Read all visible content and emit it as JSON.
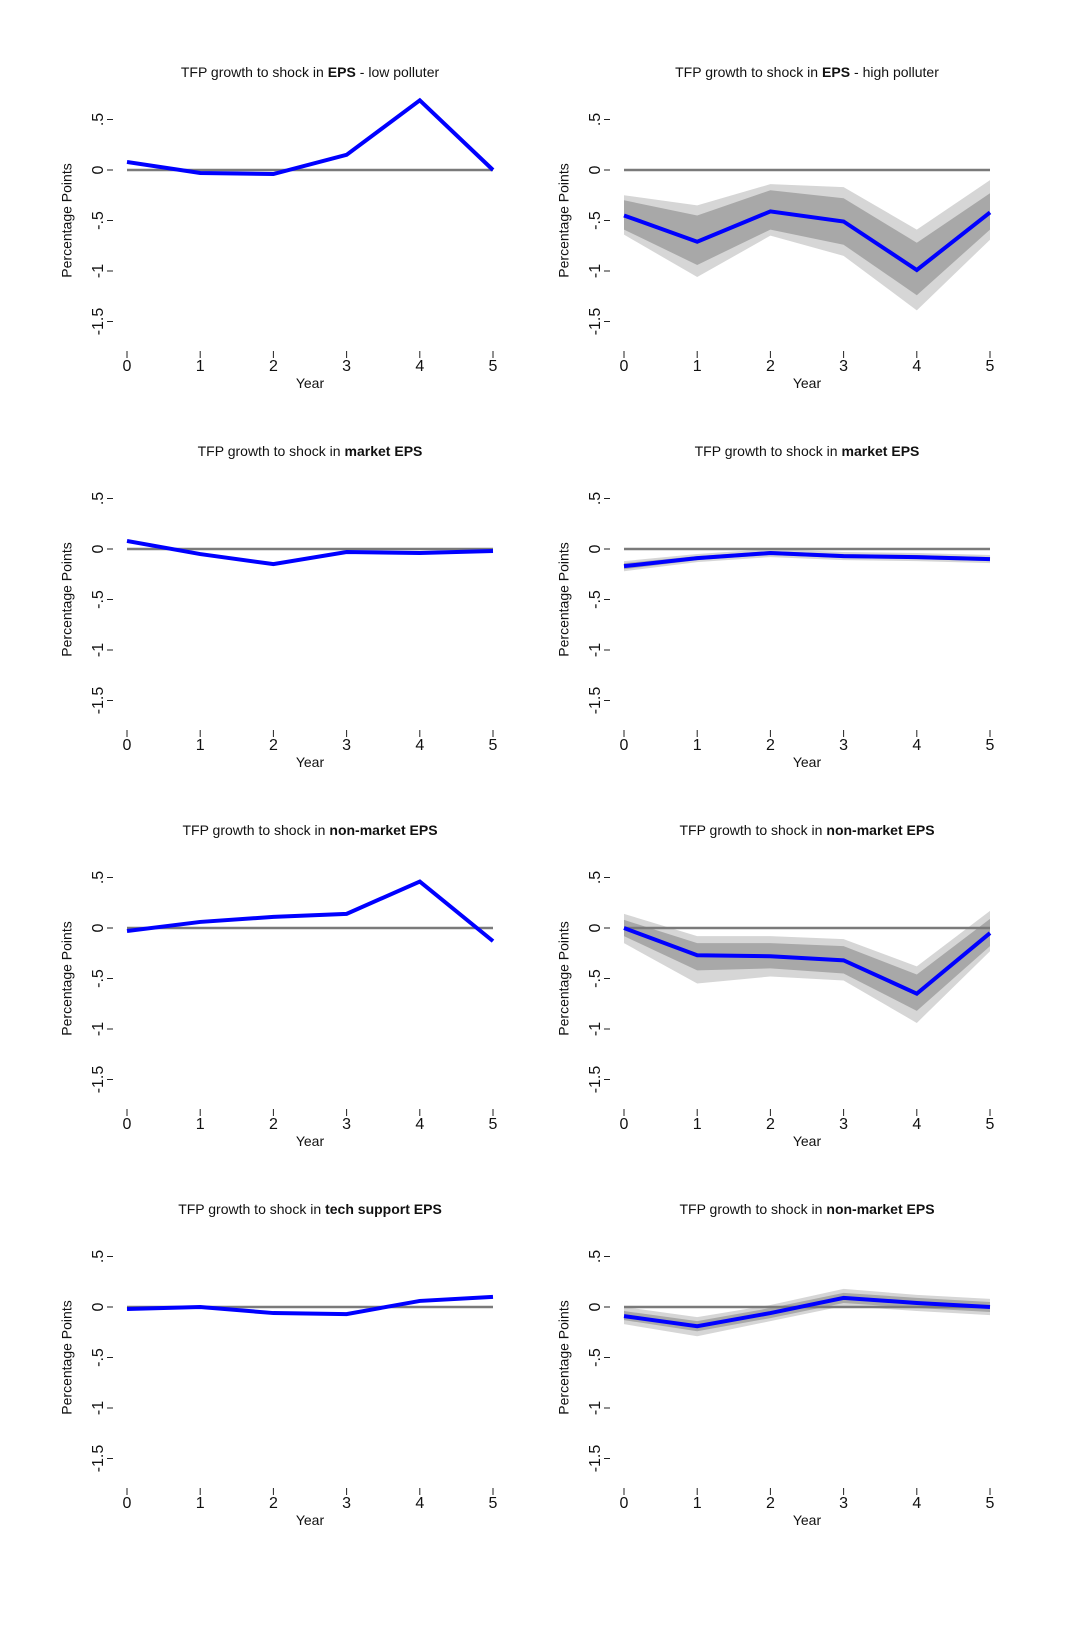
{
  "chart_data": [
    {
      "type": "line",
      "title": {
        "prefix": "TFP growth to shock in",
        "emphasis": "EPS",
        "suffix": "- low polluter"
      },
      "xlabel": "Year",
      "ylabel": "Percentage Points",
      "x": [
        0,
        1,
        2,
        3,
        4,
        5
      ],
      "xlim": [
        0,
        5
      ],
      "xticks": [
        0,
        1,
        2,
        3,
        4,
        5
      ],
      "ylim": [
        -1.6,
        0.6
      ],
      "yticks": [
        {
          "value": -1.5,
          "label": "-1.5"
        },
        -1,
        {
          "value": -0.5,
          "label": "-.5"
        },
        0,
        {
          "value": 0.5,
          "label": ".5"
        }
      ],
      "reference_line": 0,
      "series": [
        {
          "color": "#0000ff",
          "values": [
            0.08,
            -0.03,
            -0.04,
            0.15,
            0.69,
            0.0
          ]
        }
      ]
    },
    {
      "type": "line",
      "title": {
        "prefix": "TFP growth to shock in",
        "emphasis": "EPS",
        "suffix": "- high polluter"
      },
      "xlabel": "Year",
      "ylabel": "Percentage Points",
      "x": [
        0,
        1,
        2,
        3,
        4,
        5
      ],
      "xlim": [
        0,
        5
      ],
      "xticks": [
        0,
        1,
        2,
        3,
        4,
        5
      ],
      "ylim": [
        -1.6,
        0.6
      ],
      "yticks": [
        {
          "value": -1.5,
          "label": "-1.5"
        },
        -1,
        {
          "value": -0.5,
          "label": "-.5"
        },
        0,
        {
          "value": 0.5,
          "label": ".5"
        }
      ],
      "reference_line": 0,
      "bands": [
        {
          "color": "#d6d6d6",
          "upper": [
            -0.25,
            -0.35,
            -0.14,
            -0.17,
            -0.59,
            -0.1
          ],
          "lower": [
            -0.64,
            -1.06,
            -0.65,
            -0.85,
            -1.39,
            -0.69
          ]
        },
        {
          "color": "#a8a8a8",
          "upper": [
            -0.3,
            -0.45,
            -0.2,
            -0.28,
            -0.72,
            -0.23
          ],
          "lower": [
            -0.59,
            -0.94,
            -0.59,
            -0.74,
            -1.24,
            -0.59
          ]
        }
      ],
      "series": [
        {
          "color": "#0000ff",
          "values": [
            -0.45,
            -0.71,
            -0.41,
            -0.51,
            -0.99,
            -0.42
          ]
        }
      ]
    },
    {
      "type": "line",
      "title": {
        "prefix": "TFP growth to shock in",
        "emphasis": "market EPS"
      },
      "xlabel": "Year",
      "ylabel": "Percentage Points",
      "x": [
        0,
        1,
        2,
        3,
        4,
        5
      ],
      "xlim": [
        0,
        5
      ],
      "xticks": [
        0,
        1,
        2,
        3,
        4,
        5
      ],
      "ylim": [
        -1.6,
        0.6
      ],
      "yticks": [
        {
          "value": -1.5,
          "label": "-1.5"
        },
        -1,
        {
          "value": -0.5,
          "label": "-.5"
        },
        0,
        {
          "value": 0.5,
          "label": ".5"
        }
      ],
      "reference_line": 0,
      "series": [
        {
          "color": "#0000ff",
          "values": [
            0.08,
            -0.05,
            -0.15,
            -0.03,
            -0.04,
            -0.02
          ]
        }
      ]
    },
    {
      "type": "line",
      "title": {
        "prefix": "TFP growth to shock in",
        "emphasis": "market EPS"
      },
      "xlabel": "Year",
      "ylabel": "Percentage Points",
      "x": [
        0,
        1,
        2,
        3,
        4,
        5
      ],
      "xlim": [
        0,
        5
      ],
      "xticks": [
        0,
        1,
        2,
        3,
        4,
        5
      ],
      "ylim": [
        -1.6,
        0.6
      ],
      "yticks": [
        {
          "value": -1.5,
          "label": "-1.5"
        },
        -1,
        {
          "value": -0.5,
          "label": "-.5"
        },
        0,
        {
          "value": 0.5,
          "label": ".5"
        }
      ],
      "reference_line": 0,
      "bands": [
        {
          "color": "#d6d6d6",
          "upper": [
            -0.12,
            -0.05,
            0.0,
            -0.03,
            -0.04,
            -0.06
          ],
          "lower": [
            -0.22,
            -0.13,
            -0.08,
            -0.11,
            -0.12,
            -0.14
          ]
        },
        {
          "color": "#a8a8a8",
          "upper": [
            -0.14,
            -0.07,
            -0.02,
            -0.05,
            -0.06,
            -0.08
          ],
          "lower": [
            -0.2,
            -0.11,
            -0.06,
            -0.09,
            -0.1,
            -0.12
          ]
        }
      ],
      "series": [
        {
          "color": "#0000ff",
          "values": [
            -0.17,
            -0.09,
            -0.04,
            -0.07,
            -0.08,
            -0.1
          ]
        }
      ]
    },
    {
      "type": "line",
      "title": {
        "prefix": "TFP growth to shock in",
        "emphasis": "non-market EPS"
      },
      "xlabel": "Year",
      "ylabel": "Percentage Points",
      "x": [
        0,
        1,
        2,
        3,
        4,
        5
      ],
      "xlim": [
        0,
        5
      ],
      "xticks": [
        0,
        1,
        2,
        3,
        4,
        5
      ],
      "ylim": [
        -1.6,
        0.6
      ],
      "yticks": [
        {
          "value": -1.5,
          "label": "-1.5"
        },
        -1,
        {
          "value": -0.5,
          "label": "-.5"
        },
        0,
        {
          "value": 0.5,
          "label": ".5"
        }
      ],
      "reference_line": 0,
      "series": [
        {
          "color": "#0000ff",
          "values": [
            -0.03,
            0.06,
            0.11,
            0.14,
            0.46,
            -0.13
          ]
        }
      ]
    },
    {
      "type": "line",
      "title": {
        "prefix": "TFP growth to shock in",
        "emphasis": "non-market EPS"
      },
      "xlabel": "Year",
      "ylabel": "Percentage Points",
      "x": [
        0,
        1,
        2,
        3,
        4,
        5
      ],
      "xlim": [
        0,
        5
      ],
      "xticks": [
        0,
        1,
        2,
        3,
        4,
        5
      ],
      "ylim": [
        -1.6,
        0.6
      ],
      "yticks": [
        {
          "value": -1.5,
          "label": "-1.5"
        },
        -1,
        {
          "value": -0.5,
          "label": "-.5"
        },
        0,
        {
          "value": 0.5,
          "label": ".5"
        }
      ],
      "reference_line": 0,
      "bands": [
        {
          "color": "#d6d6d6",
          "upper": [
            0.14,
            -0.08,
            -0.08,
            -0.11,
            -0.38,
            0.17
          ],
          "lower": [
            -0.15,
            -0.55,
            -0.48,
            -0.52,
            -0.94,
            -0.23
          ]
        },
        {
          "color": "#a8a8a8",
          "upper": [
            0.08,
            -0.15,
            -0.15,
            -0.18,
            -0.46,
            0.09
          ],
          "lower": [
            -0.08,
            -0.42,
            -0.4,
            -0.45,
            -0.82,
            -0.18
          ]
        }
      ],
      "series": [
        {
          "color": "#0000ff",
          "values": [
            0.0,
            -0.27,
            -0.28,
            -0.32,
            -0.65,
            -0.05
          ]
        }
      ]
    },
    {
      "type": "line",
      "title": {
        "prefix": "TFP growth to shock in",
        "emphasis": "tech support EPS"
      },
      "xlabel": "Year",
      "ylabel": "Percentage Points",
      "x": [
        0,
        1,
        2,
        3,
        4,
        5
      ],
      "xlim": [
        0,
        5
      ],
      "xticks": [
        0,
        1,
        2,
        3,
        4,
        5
      ],
      "ylim": [
        -1.6,
        0.6
      ],
      "yticks": [
        {
          "value": -1.5,
          "label": "-1.5"
        },
        -1,
        {
          "value": -0.5,
          "label": "-.5"
        },
        0,
        {
          "value": 0.5,
          "label": ".5"
        }
      ],
      "reference_line": 0,
      "series": [
        {
          "color": "#0000ff",
          "values": [
            -0.02,
            0.0,
            -0.06,
            -0.07,
            0.06,
            0.1
          ]
        }
      ]
    },
    {
      "type": "line",
      "title": {
        "prefix": "TFP growth to shock in",
        "emphasis": "non-market EPS"
      },
      "xlabel": "Year",
      "ylabel": "Percentage Points",
      "x": [
        0,
        1,
        2,
        3,
        4,
        5
      ],
      "xlim": [
        0,
        5
      ],
      "xticks": [
        0,
        1,
        2,
        3,
        4,
        5
      ],
      "ylim": [
        -1.6,
        0.6
      ],
      "yticks": [
        {
          "value": -1.5,
          "label": "-1.5"
        },
        -1,
        {
          "value": -0.5,
          "label": "-.5"
        },
        0,
        {
          "value": 0.5,
          "label": ".5"
        }
      ],
      "reference_line": 0,
      "bands": [
        {
          "color": "#d6d6d6",
          "upper": [
            0.0,
            -0.1,
            0.02,
            0.18,
            0.12,
            0.08
          ],
          "lower": [
            -0.17,
            -0.29,
            -0.14,
            0.01,
            -0.04,
            -0.08
          ]
        },
        {
          "color": "#a8a8a8",
          "upper": [
            -0.04,
            -0.14,
            -0.01,
            0.14,
            0.09,
            0.05
          ],
          "lower": [
            -0.13,
            -0.24,
            -0.11,
            0.04,
            -0.01,
            -0.05
          ]
        }
      ],
      "series": [
        {
          "color": "#0000ff",
          "values": [
            -0.09,
            -0.19,
            -0.06,
            0.09,
            0.04,
            0.0
          ]
        }
      ]
    }
  ]
}
